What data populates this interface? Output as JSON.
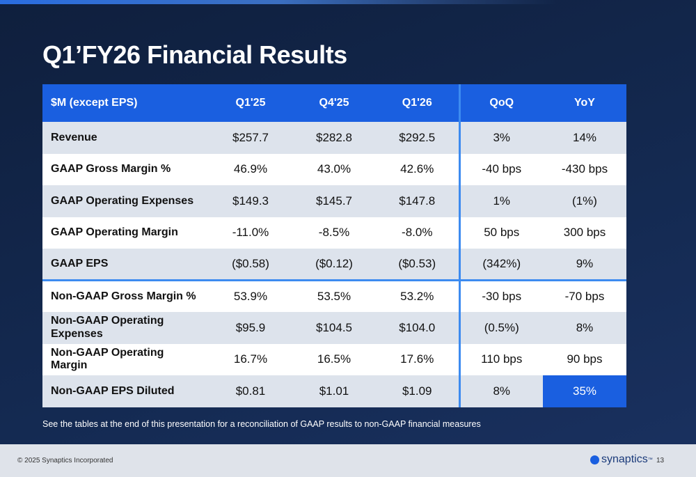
{
  "header": {
    "title": "Q1’FY26 Financial Results"
  },
  "table": {
    "header": [
      "$M (except EPS)",
      "Q1'25",
      "Q4'25",
      "Q1'26",
      "QoQ",
      "YoY"
    ],
    "rows": [
      [
        "Revenue",
        "$257.7",
        "$282.8",
        "$292.5",
        "3%",
        "14%"
      ],
      [
        "GAAP Gross Margin %",
        "46.9%",
        "43.0%",
        "42.6%",
        "-40 bps",
        "-430 bps"
      ],
      [
        "GAAP Operating Expenses",
        "$149.3",
        "$145.7",
        "$147.8",
        "1%",
        "(1%)"
      ],
      [
        "GAAP Operating Margin",
        "-11.0%",
        "-8.5%",
        "-8.0%",
        "50 bps",
        "300 bps"
      ],
      [
        "GAAP EPS",
        "($0.58)",
        "($0.12)",
        "($0.53)",
        "(342%)",
        "9%"
      ],
      [
        "Non-GAAP Gross Margin %",
        "53.9%",
        "53.5%",
        "53.2%",
        "-30 bps",
        "-70 bps"
      ],
      [
        "Non-GAAP Operating Expenses",
        "$95.9",
        "$104.5",
        "$104.0",
        "(0.5%)",
        "8%"
      ],
      [
        "Non-GAAP Operating Margin",
        "16.7%",
        "16.5%",
        "17.6%",
        "110 bps",
        "90 bps"
      ],
      [
        "Non-GAAP EPS Diluted",
        "$0.81",
        "$1.01",
        "$1.09",
        "8%",
        "35%"
      ]
    ]
  },
  "footnote": "See the tables at the end of this presentation for a reconciliation of GAAP results to non-GAAP financial measures",
  "footer": {
    "copyright": "© 2025 Synaptics Incorporated",
    "logo": "synaptics",
    "logo_mark": "™",
    "page": "13"
  }
}
